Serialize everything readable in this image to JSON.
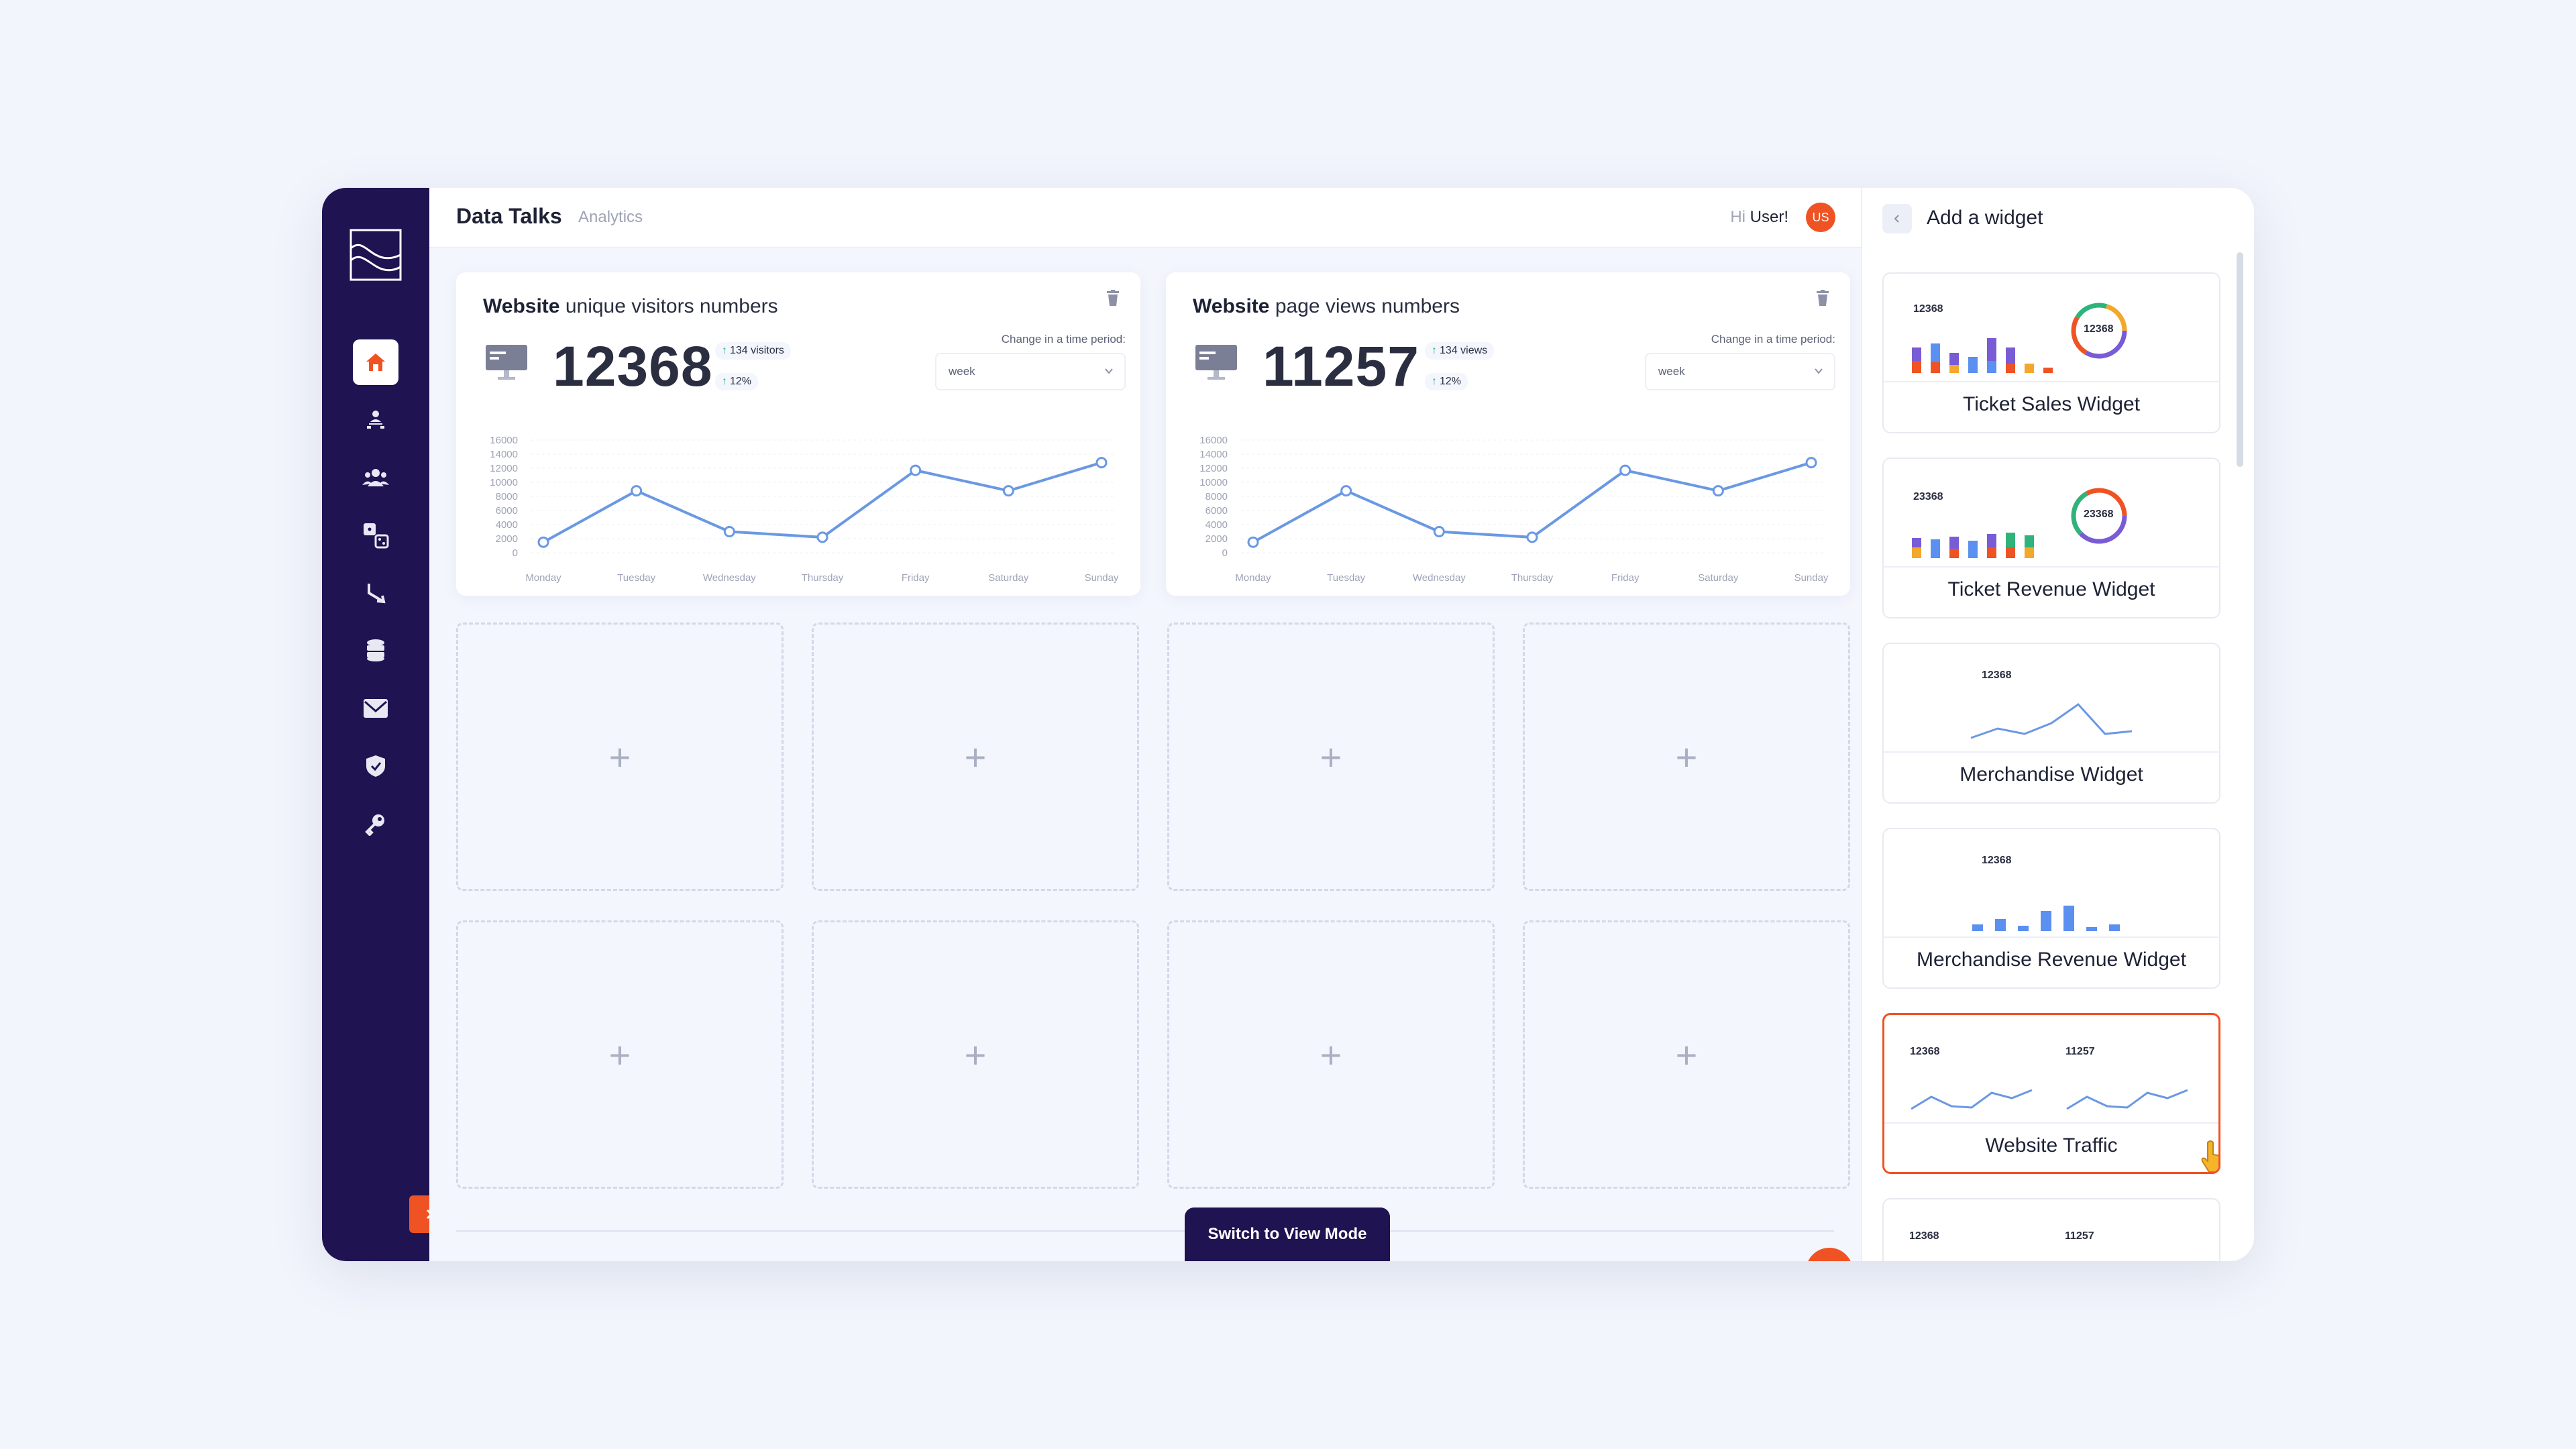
{
  "header": {
    "app_name": "Data Talks",
    "section": "Analytics",
    "greeting_prefix": "Hi",
    "greeting_user": "User!",
    "avatar_initials": "US"
  },
  "sidebar": {
    "items": [
      {
        "icon": "home-icon",
        "active": true
      },
      {
        "icon": "user-hierarchy-icon",
        "active": false
      },
      {
        "icon": "users-group-icon",
        "active": false
      },
      {
        "icon": "dice-icon",
        "active": false
      },
      {
        "icon": "split-arrow-icon",
        "active": false
      },
      {
        "icon": "database-icon",
        "active": false
      },
      {
        "icon": "mail-icon",
        "active": false
      },
      {
        "icon": "shield-icon",
        "active": false
      },
      {
        "icon": "key-icon",
        "active": false
      }
    ]
  },
  "cards": [
    {
      "title_bold": "Website",
      "title_rest": "unique visitors numbers",
      "value": "12368",
      "stat1": "134 visitors",
      "stat2": "12%",
      "period_label": "Change in a time period:",
      "period_value": "week"
    },
    {
      "title_bold": "Website",
      "title_rest": "page views numbers",
      "value": "11257",
      "stat1": "134 views",
      "stat2": "12%",
      "period_label": "Change in a time period:",
      "period_value": "week"
    }
  ],
  "chart_data": [
    {
      "type": "line",
      "categories": [
        "Monday",
        "Tuesday",
        "Wednesday",
        "Thursday",
        "Friday",
        "Saturday",
        "Sunday"
      ],
      "series": [
        {
          "values": [
            1500,
            8800,
            3000,
            2200,
            11700,
            8800,
            12800
          ]
        }
      ],
      "yticks": [
        "16000",
        "14000",
        "12000",
        "10000",
        "8000",
        "6000",
        "4000",
        "2000",
        "0"
      ],
      "ylim": [
        0,
        16000
      ],
      "color": "#6a98e3",
      "grid": true
    },
    {
      "type": "line",
      "categories": [
        "Monday",
        "Tuesday",
        "Wednesday",
        "Thursday",
        "Friday",
        "Saturday",
        "Sunday"
      ],
      "series": [
        {
          "values": [
            1500,
            8800,
            3000,
            2200,
            11700,
            8800,
            12800
          ]
        }
      ],
      "yticks": [
        "16000",
        "14000",
        "12000",
        "10000",
        "8000",
        "6000",
        "4000",
        "2000",
        "0"
      ],
      "ylim": [
        0,
        16000
      ],
      "color": "#6a98e3",
      "grid": true
    }
  ],
  "slots": {
    "add_symbol": "+"
  },
  "switch_button": "Switch to View Mode",
  "panel": {
    "title": "Add a widget",
    "widgets": [
      {
        "label": "Ticket Sales Widget",
        "num": "12368",
        "ring": "12368",
        "selected": false
      },
      {
        "label": "Ticket Revenue Widget",
        "num": "23368",
        "ring": "23368",
        "selected": false
      },
      {
        "label": "Merchandise Widget",
        "num": "12368",
        "selected": false
      },
      {
        "label": "Merchandise Revenue Widget",
        "num": "12368",
        "selected": false
      },
      {
        "label": "Website Traffic",
        "num": "12368",
        "num2": "11257",
        "selected": true
      },
      {
        "label": "",
        "num": "12368",
        "num2": "11257",
        "selected": false
      }
    ]
  },
  "colors": {
    "accent": "#ef5323",
    "sidebar": "#1f1352",
    "line": "#6a98e3"
  }
}
